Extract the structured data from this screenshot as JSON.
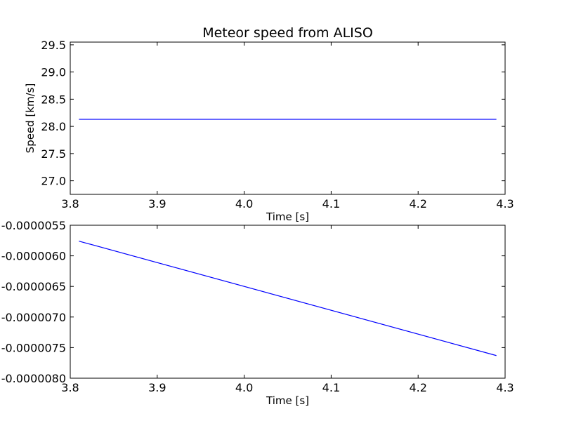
{
  "chart_data": [
    {
      "type": "line",
      "title": "Meteor speed from  ALISO",
      "xlabel": "Time [s]",
      "ylabel": "Speed [km/s]",
      "xlim": [
        3.8,
        4.3
      ],
      "ylim": [
        26.75,
        29.55
      ],
      "x_ticks": [
        3.8,
        3.9,
        4.0,
        4.1,
        4.2,
        4.3
      ],
      "x_tick_labels": [
        "3.8",
        "3.9",
        "4.0",
        "4.1",
        "4.2",
        "4.3"
      ],
      "y_ticks": [
        27.0,
        27.5,
        28.0,
        28.5,
        29.0,
        29.5
      ],
      "y_tick_labels": [
        "27.0",
        "27.5",
        "28.0",
        "28.5",
        "29.0",
        "29.5"
      ],
      "grid": false,
      "series": [
        {
          "color": "#0000ff",
          "x": [
            3.81,
            4.29
          ],
          "y": [
            28.13,
            28.13
          ]
        }
      ]
    },
    {
      "type": "line",
      "title": "",
      "xlabel": "Time [s]",
      "ylabel": "",
      "xlim": [
        3.8,
        4.3
      ],
      "ylim": [
        -8e-06,
        -5.5e-06
      ],
      "x_ticks": [
        3.8,
        3.9,
        4.0,
        4.1,
        4.2,
        4.3
      ],
      "x_tick_labels": [
        "3.8",
        "3.9",
        "4.0",
        "4.1",
        "4.2",
        "4.3"
      ],
      "y_ticks": [
        -5.5e-06,
        -6e-06,
        -6.5e-06,
        -7e-06,
        -7.5e-06,
        -8e-06
      ],
      "y_tick_labels": [
        "-0.0000055",
        "-0.0000060",
        "-0.0000065",
        "-0.0000070",
        "-0.0000075",
        "-0.0000080"
      ],
      "grid": false,
      "series": [
        {
          "color": "#0000ff",
          "x": [
            3.81,
            4.29
          ],
          "y": [
            -5.76e-06,
            -7.63e-06
          ]
        }
      ]
    }
  ]
}
